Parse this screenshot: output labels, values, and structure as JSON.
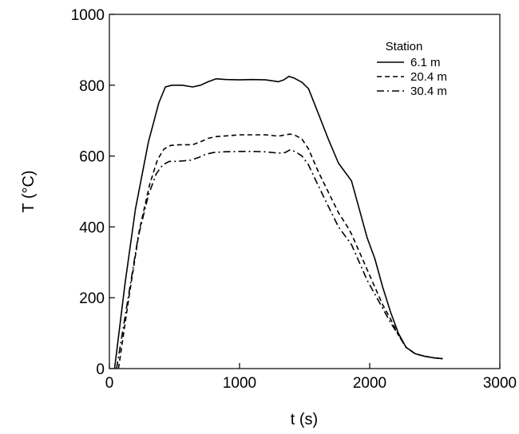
{
  "chart_data": {
    "type": "line",
    "title": "",
    "xlabel": "t (s)",
    "ylabel": "T (°C)",
    "xlim": [
      0,
      3000
    ],
    "ylim": [
      0,
      1000
    ],
    "xticks": [
      0,
      1000,
      2000,
      3000
    ],
    "yticks": [
      0,
      200,
      400,
      600,
      800,
      1000
    ],
    "grid": false,
    "legend": {
      "title": "Station",
      "position": "top-right"
    },
    "series": [
      {
        "name": "6.1 m",
        "dash": "solid",
        "x": [
          40,
          120,
          200,
          300,
          380,
          430,
          480,
          560,
          640,
          700,
          760,
          820,
          900,
          1000,
          1100,
          1200,
          1300,
          1340,
          1380,
          1420,
          1480,
          1530,
          1600,
          1680,
          1760,
          1830,
          1860,
          1920,
          1980,
          2040,
          2100,
          2160,
          2220,
          2280,
          2350,
          2420,
          2500,
          2560
        ],
        "y": [
          0,
          240,
          450,
          640,
          750,
          795,
          800,
          800,
          795,
          800,
          810,
          818,
          816,
          815,
          816,
          815,
          810,
          815,
          825,
          820,
          808,
          790,
          725,
          650,
          580,
          545,
          530,
          450,
          370,
          310,
          230,
          160,
          100,
          60,
          42,
          35,
          30,
          28
        ]
      },
      {
        "name": "20.4 m",
        "dash": "dashed",
        "x": [
          70,
          150,
          230,
          310,
          370,
          420,
          470,
          540,
          640,
          700,
          760,
          820,
          900,
          1000,
          1100,
          1200,
          1300,
          1350,
          1390,
          1430,
          1480,
          1530,
          1600,
          1680,
          1760,
          1830,
          1860,
          1920,
          1980,
          2040,
          2100,
          2160,
          2220,
          2280,
          2350,
          2420,
          2500,
          2560
        ],
        "y": [
          0,
          200,
          390,
          520,
          590,
          620,
          630,
          632,
          632,
          640,
          650,
          655,
          657,
          660,
          660,
          660,
          656,
          660,
          662,
          658,
          648,
          620,
          560,
          500,
          440,
          400,
          380,
          330,
          280,
          230,
          180,
          140,
          95,
          60,
          42,
          35,
          30,
          28
        ]
      },
      {
        "name": "30.4 m",
        "dash": "dashdot",
        "x": [
          55,
          140,
          220,
          300,
          360,
          410,
          460,
          520,
          620,
          680,
          740,
          800,
          880,
          1000,
          1100,
          1200,
          1300,
          1350,
          1390,
          1430,
          1480,
          1530,
          1600,
          1680,
          1760,
          1830,
          1860,
          1920,
          1980,
          2040,
          2100,
          2160,
          2220,
          2280,
          2350,
          2420,
          2500,
          2560
        ],
        "y": [
          0,
          190,
          370,
          490,
          550,
          575,
          585,
          585,
          588,
          595,
          605,
          610,
          612,
          613,
          613,
          612,
          608,
          610,
          618,
          612,
          600,
          575,
          520,
          460,
          400,
          365,
          350,
          300,
          250,
          210,
          170,
          130,
          95,
          60,
          42,
          35,
          30,
          28
        ]
      }
    ]
  }
}
